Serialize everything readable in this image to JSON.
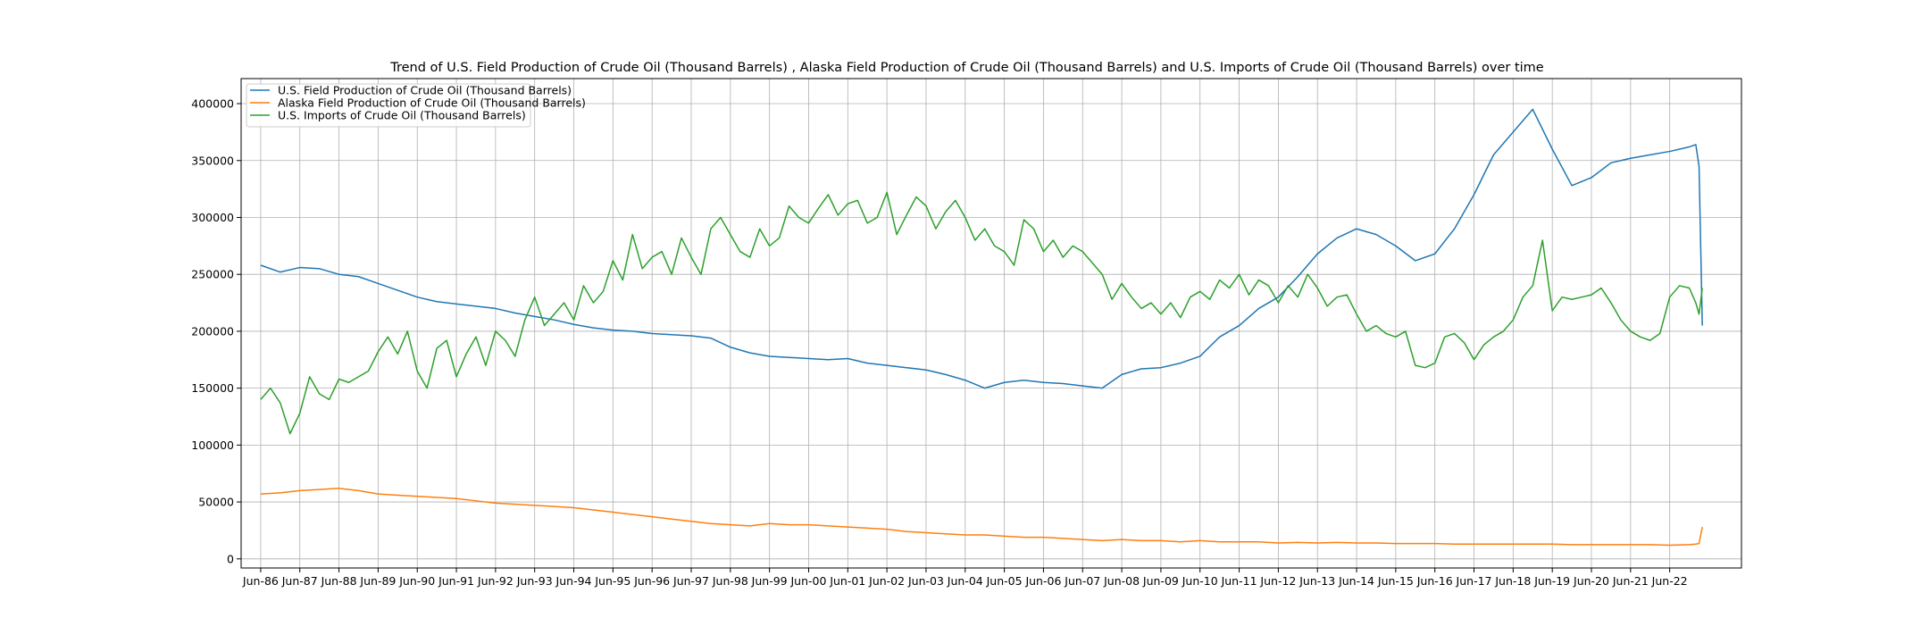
{
  "chart_data": {
    "type": "line",
    "title": "Trend of  U.S. Field Production of Crude Oil (Thousand Barrels) ,  Alaska Field Production of Crude Oil (Thousand Barrels)  and  U.S. Imports of Crude Oil (Thousand Barrels)  over time",
    "xlabel": "",
    "ylabel": "",
    "x_tick_labels": [
      "Jun-86",
      "Jun-87",
      "Jun-88",
      "Jun-89",
      "Jun-90",
      "Jun-91",
      "Jun-92",
      "Jun-93",
      "Jun-94",
      "Jun-95",
      "Jun-96",
      "Jun-97",
      "Jun-98",
      "Jun-99",
      "Jun-00",
      "Jun-01",
      "Jun-02",
      "Jun-03",
      "Jun-04",
      "Jun-05",
      "Jun-06",
      "Jun-07",
      "Jun-08",
      "Jun-09",
      "Jun-10",
      "Jun-11",
      "Jun-12",
      "Jun-13",
      "Jun-14",
      "Jun-15",
      "Jun-16",
      "Jun-17",
      "Jun-18",
      "Jun-19",
      "Jun-20",
      "Jun-21",
      "Jun-22"
    ],
    "y_ticks": [
      0,
      50000,
      100000,
      150000,
      200000,
      250000,
      300000,
      350000,
      400000
    ],
    "y_tick_labels": [
      "0",
      "50000",
      "100000",
      "150000",
      "200000",
      "250000",
      "300000",
      "350000",
      "400000"
    ],
    "ylim": [
      -8000,
      422000
    ],
    "x_range_months": [
      -6,
      454
    ],
    "grid": true,
    "legend_position": "top-left",
    "series": [
      {
        "name": "U.S. Field Production of Crude Oil (Thousand Barrels)",
        "color": "#1f77b4",
        "x_months": [
          0,
          6,
          12,
          18,
          24,
          30,
          36,
          42,
          48,
          54,
          60,
          66,
          72,
          78,
          84,
          90,
          96,
          102,
          108,
          114,
          120,
          126,
          132,
          138,
          144,
          150,
          156,
          162,
          168,
          174,
          180,
          186,
          192,
          198,
          204,
          210,
          216,
          222,
          228,
          234,
          240,
          246,
          252,
          258,
          264,
          270,
          276,
          282,
          288,
          294,
          300,
          306,
          312,
          318,
          324,
          330,
          336,
          342,
          348,
          354,
          360,
          366,
          372,
          378,
          384,
          390,
          396,
          402,
          408,
          414,
          420,
          426,
          432,
          438,
          440,
          441,
          442
        ],
        "values": [
          258000,
          252000,
          256000,
          255000,
          250000,
          248000,
          242000,
          236000,
          230000,
          226000,
          224000,
          222000,
          220000,
          216000,
          213000,
          210000,
          206000,
          203000,
          201000,
          200000,
          198000,
          197000,
          196000,
          194000,
          186000,
          181000,
          178000,
          177000,
          176000,
          175000,
          176000,
          172000,
          170000,
          168000,
          166000,
          162000,
          157000,
          150000,
          155000,
          157000,
          155000,
          154000,
          152000,
          150000,
          162000,
          167000,
          168000,
          172000,
          178000,
          195000,
          205000,
          220000,
          230000,
          248000,
          268000,
          282000,
          290000,
          285000,
          275000,
          262000,
          268000,
          290000,
          320000,
          355000,
          375000,
          395000,
          360000,
          328000,
          335000,
          348000,
          352000,
          355000,
          358000,
          362000,
          364000,
          345000,
          205000
        ]
      },
      {
        "name": "Alaska Field Production of Crude Oil (Thousand Barrels)",
        "color": "#ff7f0e",
        "x_months": [
          0,
          6,
          12,
          18,
          24,
          30,
          36,
          42,
          48,
          54,
          60,
          66,
          72,
          78,
          84,
          90,
          96,
          102,
          108,
          114,
          120,
          126,
          132,
          138,
          144,
          150,
          156,
          162,
          168,
          174,
          180,
          186,
          192,
          198,
          204,
          210,
          216,
          222,
          228,
          234,
          240,
          246,
          252,
          258,
          264,
          270,
          276,
          282,
          288,
          294,
          300,
          306,
          312,
          318,
          324,
          330,
          336,
          342,
          348,
          354,
          360,
          366,
          372,
          378,
          384,
          390,
          396,
          402,
          408,
          414,
          420,
          426,
          432,
          438,
          440,
          441,
          442
        ],
        "values": [
          57000,
          58000,
          60000,
          61000,
          62000,
          60000,
          57000,
          56000,
          55000,
          54000,
          53000,
          51000,
          49000,
          48000,
          47000,
          46000,
          45000,
          43000,
          41000,
          39000,
          37000,
          35000,
          33000,
          31000,
          30000,
          29000,
          31000,
          30000,
          30000,
          29000,
          28000,
          27000,
          26000,
          24000,
          23000,
          22000,
          21000,
          21000,
          20000,
          19000,
          19000,
          18000,
          17000,
          16000,
          17000,
          16000,
          16000,
          15000,
          16000,
          15000,
          15000,
          15000,
          14000,
          14500,
          14000,
          14500,
          14000,
          14000,
          13500,
          13500,
          13500,
          13000,
          13000,
          13000,
          13000,
          13000,
          13000,
          12500,
          12500,
          12500,
          12500,
          12500,
          12000,
          12500,
          13000,
          13500,
          28000
        ]
      },
      {
        "name": "U.S. Imports of Crude Oil (Thousand Barrels)",
        "color": "#2ca02c",
        "x_months": [
          0,
          3,
          6,
          9,
          12,
          15,
          18,
          21,
          24,
          27,
          30,
          33,
          36,
          39,
          42,
          45,
          48,
          51,
          54,
          57,
          60,
          63,
          66,
          69,
          72,
          75,
          78,
          81,
          84,
          87,
          90,
          93,
          96,
          99,
          102,
          105,
          108,
          111,
          114,
          117,
          120,
          123,
          126,
          129,
          132,
          135,
          138,
          141,
          144,
          147,
          150,
          153,
          156,
          159,
          162,
          165,
          168,
          171,
          174,
          177,
          180,
          183,
          186,
          189,
          192,
          195,
          198,
          201,
          204,
          207,
          210,
          213,
          216,
          219,
          222,
          225,
          228,
          231,
          234,
          237,
          240,
          243,
          246,
          249,
          252,
          255,
          258,
          261,
          264,
          267,
          270,
          273,
          276,
          279,
          282,
          285,
          288,
          291,
          294,
          297,
          300,
          303,
          306,
          309,
          312,
          315,
          318,
          321,
          324,
          327,
          330,
          333,
          336,
          339,
          342,
          345,
          348,
          351,
          354,
          357,
          360,
          363,
          366,
          369,
          372,
          375,
          378,
          381,
          384,
          387,
          390,
          393,
          396,
          399,
          402,
          405,
          408,
          411,
          414,
          417,
          420,
          423,
          426,
          429,
          432,
          435,
          438,
          440,
          441,
          442
        ],
        "values": [
          140000,
          150000,
          137000,
          110000,
          128000,
          160000,
          145000,
          140000,
          158000,
          155000,
          160000,
          165000,
          182000,
          195000,
          180000,
          200000,
          165000,
          150000,
          185000,
          192000,
          160000,
          180000,
          195000,
          170000,
          200000,
          192000,
          178000,
          210000,
          230000,
          205000,
          215000,
          225000,
          210000,
          240000,
          225000,
          235000,
          262000,
          245000,
          285000,
          255000,
          265000,
          270000,
          250000,
          282000,
          265000,
          250000,
          290000,
          300000,
          285000,
          270000,
          265000,
          290000,
          275000,
          282000,
          310000,
          300000,
          295000,
          308000,
          320000,
          302000,
          312000,
          315000,
          295000,
          300000,
          322000,
          285000,
          302000,
          318000,
          310000,
          290000,
          305000,
          315000,
          300000,
          280000,
          290000,
          275000,
          270000,
          258000,
          298000,
          290000,
          270000,
          280000,
          265000,
          275000,
          270000,
          260000,
          250000,
          228000,
          242000,
          230000,
          220000,
          225000,
          215000,
          225000,
          212000,
          230000,
          235000,
          228000,
          245000,
          238000,
          250000,
          232000,
          245000,
          240000,
          225000,
          240000,
          230000,
          250000,
          238000,
          222000,
          230000,
          232000,
          215000,
          200000,
          205000,
          198000,
          195000,
          200000,
          170000,
          168000,
          172000,
          195000,
          198000,
          190000,
          175000,
          188000,
          195000,
          200000,
          210000,
          230000,
          240000,
          280000,
          218000,
          230000,
          228000,
          230000,
          232000,
          238000,
          225000,
          210000,
          200000,
          195000,
          192000,
          198000,
          230000,
          240000,
          238000,
          225000,
          215000,
          238000
        ]
      }
    ]
  }
}
